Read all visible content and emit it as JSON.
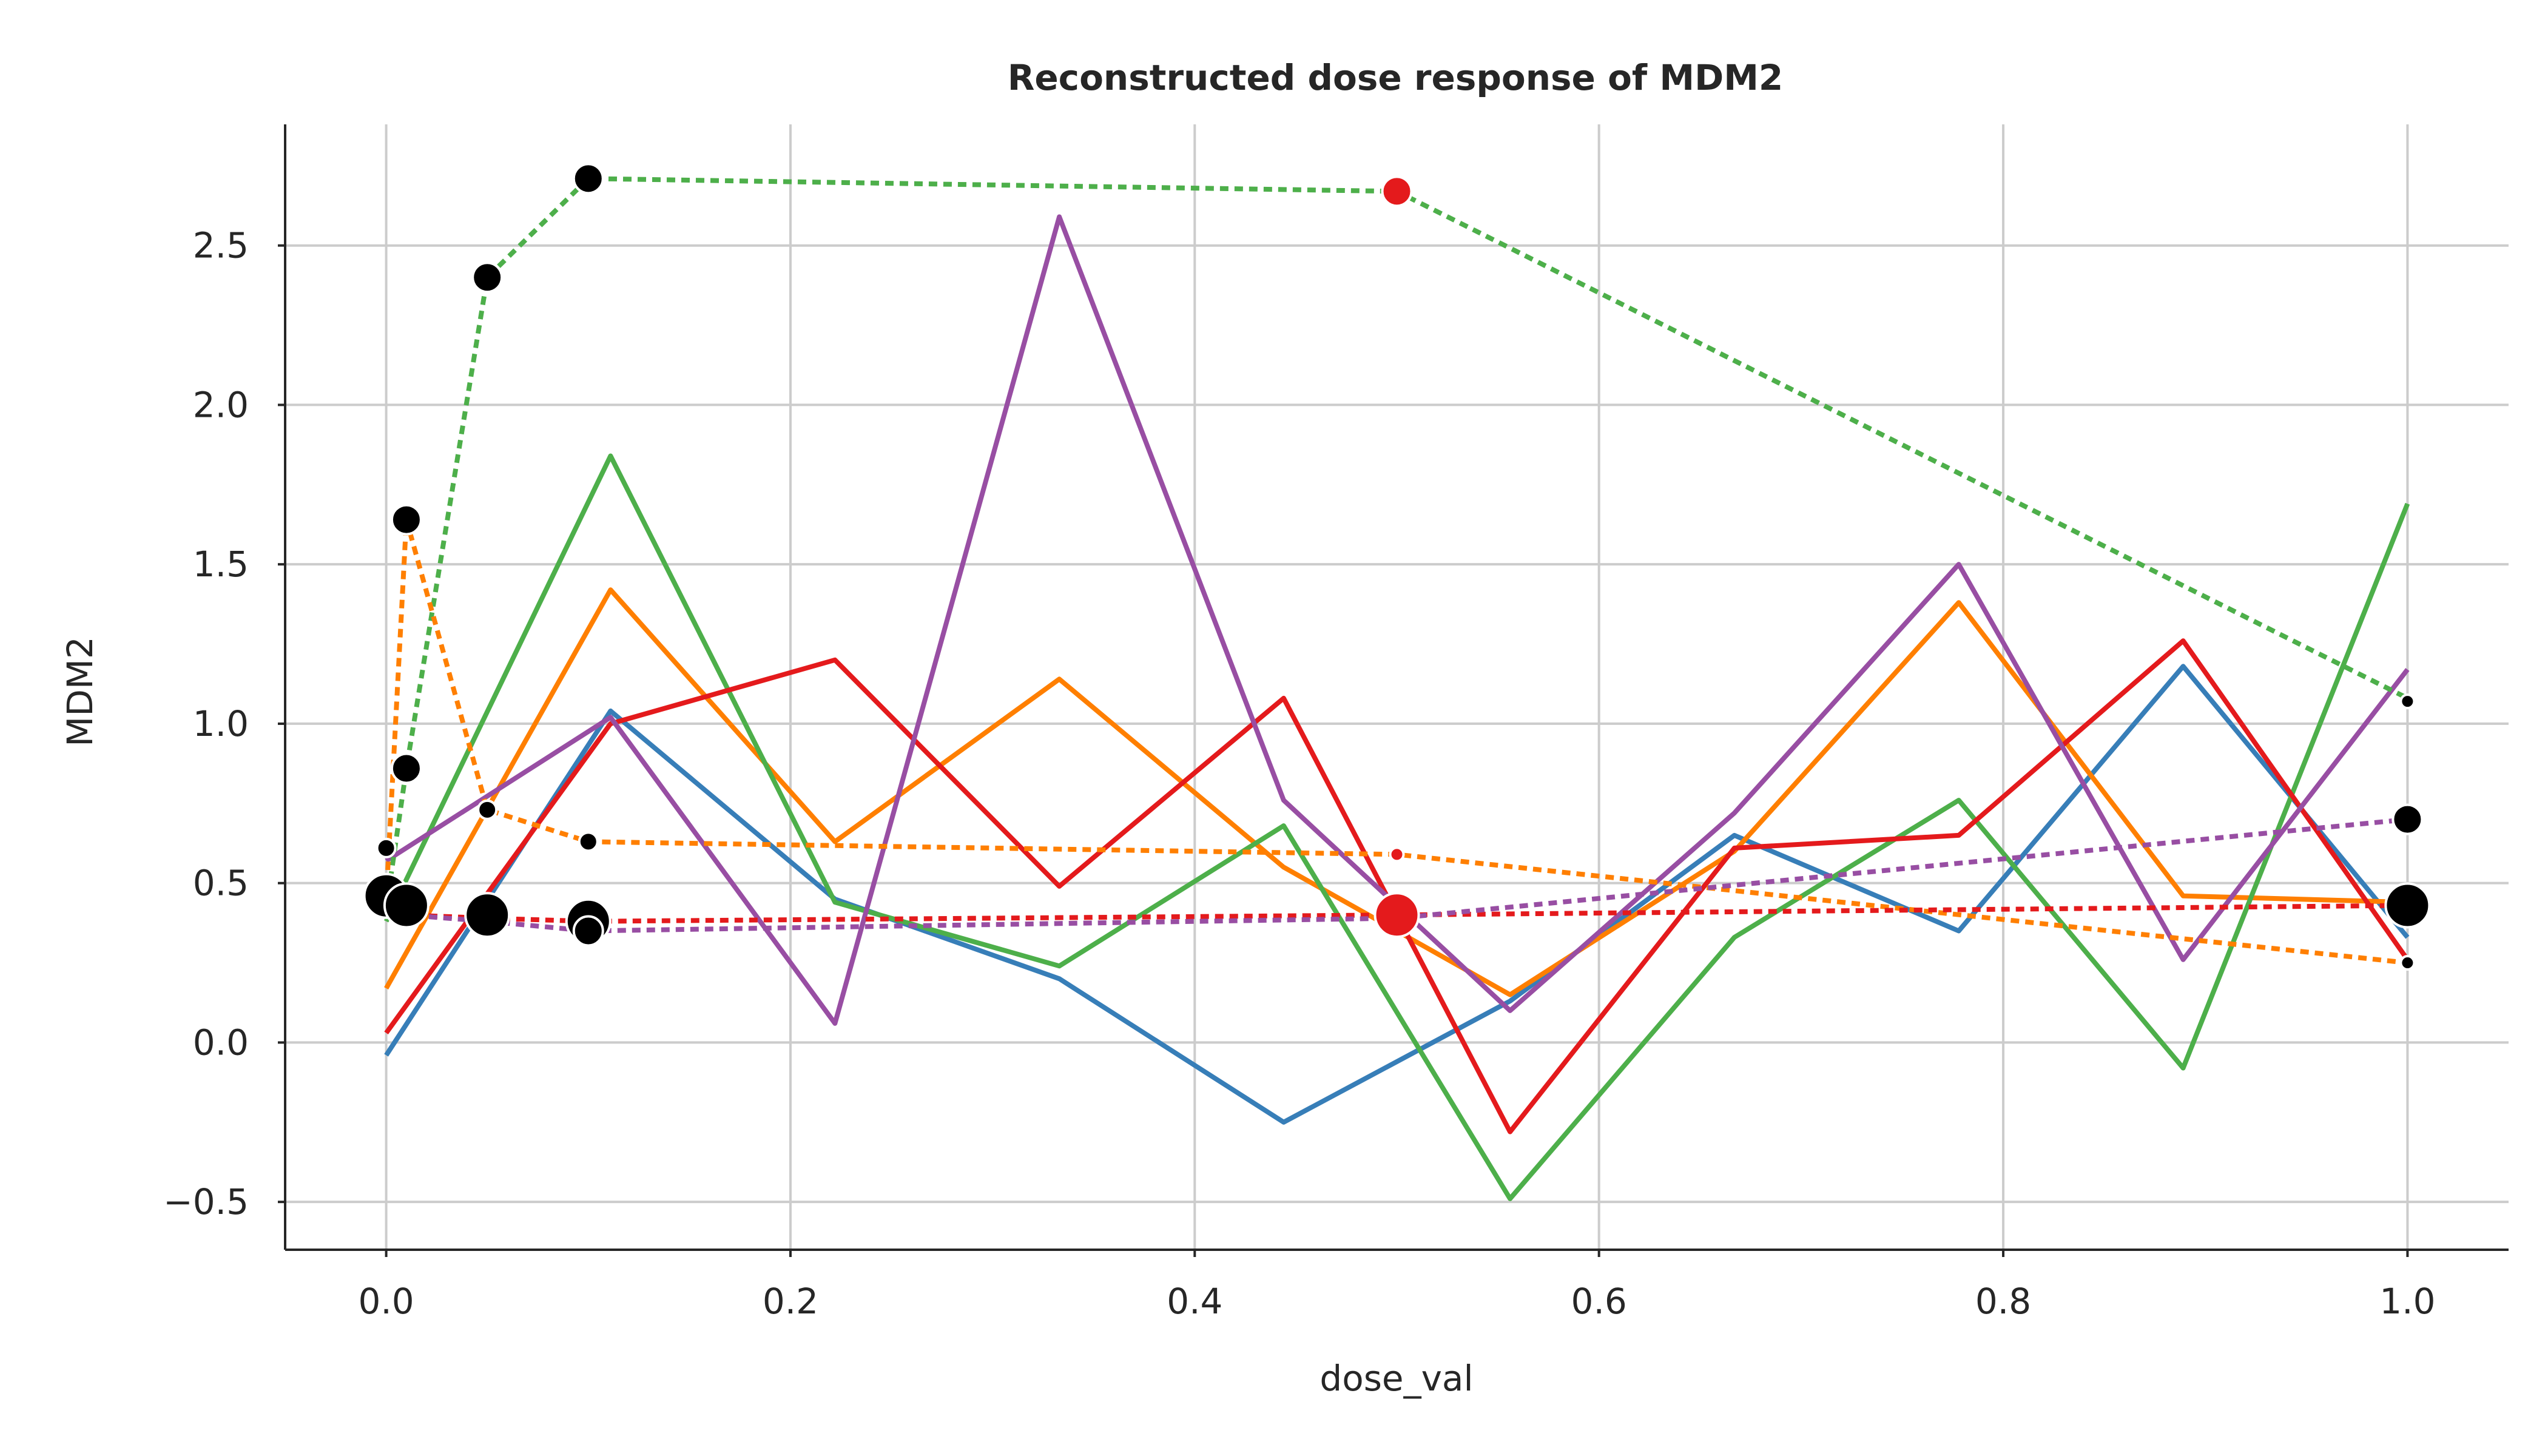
{
  "chart_data": {
    "type": "line",
    "title": "Reconstructed dose response of MDM2",
    "xlabel": "dose_val",
    "ylabel": "MDM2",
    "xlim": [
      -0.05,
      1.05
    ],
    "ylim": [
      -0.65,
      2.88
    ],
    "xticks": [
      0.0,
      0.2,
      0.4,
      0.6,
      0.8,
      1.0
    ],
    "xtick_labels": [
      "0.0",
      "0.2",
      "0.4",
      "0.6",
      "0.8",
      "1.0"
    ],
    "yticks": [
      -0.5,
      0.0,
      0.5,
      1.0,
      1.5,
      2.0,
      2.5
    ],
    "ytick_labels": [
      "−0.5",
      "0.0",
      "0.5",
      "1.0",
      "1.5",
      "2.0",
      "2.5"
    ],
    "grid": true,
    "colors": {
      "blue": "#377eb8",
      "orange": "#ff7f00",
      "green": "#4daf4a",
      "red": "#e41a1c",
      "purple": "#984ea3",
      "observed": "#000000",
      "highlight": "#e41a1c"
    },
    "series": [
      {
        "style": "solid",
        "color": "#377eb8",
        "x": [
          0.0,
          0.111,
          0.222,
          0.333,
          0.444,
          0.556,
          0.667,
          0.778,
          0.889,
          1.0
        ],
        "y": [
          -0.04,
          1.04,
          0.45,
          0.2,
          -0.25,
          0.13,
          0.65,
          0.35,
          1.18,
          0.33
        ]
      },
      {
        "style": "solid",
        "color": "#ff7f00",
        "x": [
          0.0,
          0.111,
          0.222,
          0.333,
          0.444,
          0.556,
          0.667,
          0.778,
          0.889,
          1.0
        ],
        "y": [
          0.17,
          1.42,
          0.63,
          1.14,
          0.55,
          0.15,
          0.6,
          1.38,
          0.46,
          0.44
        ]
      },
      {
        "style": "solid",
        "color": "#4daf4a",
        "x": [
          0.0,
          0.111,
          0.222,
          0.333,
          0.444,
          0.556,
          0.667,
          0.778,
          0.889,
          1.0
        ],
        "y": [
          0.38,
          1.84,
          0.44,
          0.24,
          0.68,
          -0.49,
          0.33,
          0.76,
          -0.08,
          1.69
        ]
      },
      {
        "style": "solid",
        "color": "#e41a1c",
        "x": [
          0.0,
          0.111,
          0.222,
          0.333,
          0.444,
          0.556,
          0.667,
          0.778,
          0.889,
          1.0
        ],
        "y": [
          0.03,
          1.0,
          1.2,
          0.49,
          1.08,
          -0.28,
          0.61,
          0.65,
          1.26,
          0.26
        ]
      },
      {
        "style": "solid",
        "color": "#984ea3",
        "x": [
          0.0,
          0.111,
          0.222,
          0.333,
          0.444,
          0.556,
          0.667,
          0.778,
          0.889,
          1.0
        ],
        "y": [
          0.57,
          1.02,
          0.06,
          2.59,
          0.76,
          0.1,
          0.72,
          1.5,
          0.26,
          1.17
        ]
      },
      {
        "style": "dotted",
        "color": "#4daf4a",
        "x": [
          0.0,
          0.01,
          0.05,
          0.1,
          0.5,
          1.0
        ],
        "y": [
          0.42,
          0.86,
          2.4,
          2.71,
          2.67,
          1.08
        ]
      },
      {
        "style": "dotted",
        "color": "#ff7f00",
        "x": [
          0.0,
          0.01,
          0.05,
          0.1,
          0.5,
          1.0
        ],
        "y": [
          0.45,
          1.64,
          0.73,
          0.63,
          0.59,
          0.25
        ]
      },
      {
        "style": "dotted",
        "color": "#e41a1c",
        "x": [
          0.0,
          0.01,
          0.05,
          0.1,
          0.5,
          1.0
        ],
        "y": [
          0.42,
          0.4,
          0.39,
          0.38,
          0.4,
          0.43
        ]
      },
      {
        "style": "dotted",
        "color": "#984ea3",
        "x": [
          0.0,
          0.01,
          0.05,
          0.1,
          0.5,
          1.0
        ],
        "y": [
          0.42,
          0.4,
          0.38,
          0.35,
          0.39,
          0.7
        ]
      }
    ],
    "observed_points": [
      {
        "x": 0.0,
        "y": 0.46,
        "size": "large"
      },
      {
        "x": 0.0,
        "y": 0.61,
        "size": "small"
      },
      {
        "x": 0.01,
        "y": 0.43,
        "size": "large"
      },
      {
        "x": 0.01,
        "y": 0.86,
        "size": "medium"
      },
      {
        "x": 0.01,
        "y": 1.64,
        "size": "medium"
      },
      {
        "x": 0.05,
        "y": 2.4,
        "size": "medium"
      },
      {
        "x": 0.05,
        "y": 0.73,
        "size": "small"
      },
      {
        "x": 0.05,
        "y": 0.4,
        "size": "large"
      },
      {
        "x": 0.1,
        "y": 2.71,
        "size": "medium"
      },
      {
        "x": 0.1,
        "y": 0.63,
        "size": "small"
      },
      {
        "x": 0.1,
        "y": 0.38,
        "size": "large"
      },
      {
        "x": 0.1,
        "y": 0.35,
        "size": "medium"
      },
      {
        "x": 1.0,
        "y": 1.07,
        "size": "tiny"
      },
      {
        "x": 1.0,
        "y": 0.7,
        "size": "medium"
      },
      {
        "x": 1.0,
        "y": 0.43,
        "size": "large"
      },
      {
        "x": 1.0,
        "y": 0.25,
        "size": "tiny"
      }
    ],
    "highlighted_points": [
      {
        "x": 0.5,
        "y": 2.67,
        "size": "medium"
      },
      {
        "x": 0.5,
        "y": 0.4,
        "size": "large"
      },
      {
        "x": 0.5,
        "y": 0.59,
        "size": "tiny"
      }
    ]
  }
}
